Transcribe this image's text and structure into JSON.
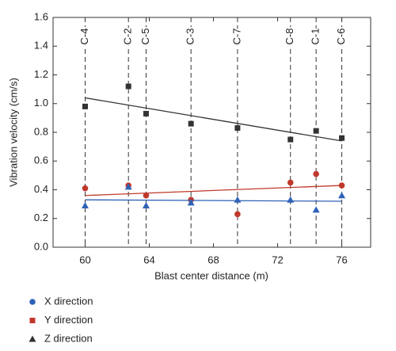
{
  "chart_data": {
    "type": "scatter",
    "x_label": "Blast center distance (m)",
    "y_label": "Vibration velocity (cm/s)",
    "stations": [
      "C-4",
      "C-2",
      "C-5",
      "C-3",
      "C-7",
      "C-8",
      "C-1",
      "C-6"
    ],
    "x": [
      60,
      62.7,
      63.8,
      66.6,
      69.5,
      72.8,
      74.4,
      76
    ],
    "xlim": [
      58,
      77.8
    ],
    "xticks": [
      60,
      64,
      68,
      72,
      76
    ],
    "ylim": [
      0,
      1.6
    ],
    "yticks": [
      {
        "value": 0,
        "label": "0.0"
      },
      0.2,
      0.4,
      0.6,
      0.8,
      {
        "value": 1,
        "label": "1.0"
      },
      1.2,
      1.4,
      1.6
    ],
    "series": [
      {
        "name": "X direction",
        "marker": "circle",
        "color": "#c0392b",
        "legend_color": "#2e62b8",
        "values": [
          0.41,
          0.43,
          0.36,
          0.33,
          0.23,
          0.45,
          0.51,
          0.43
        ],
        "fit": {
          "x": [
            60,
            76
          ],
          "values": [
            0.36,
            0.43
          ]
        }
      },
      {
        "name": "Y direction",
        "marker": "square",
        "color": "#333333",
        "legend_color": "#c0392b",
        "values": [
          0.98,
          1.12,
          0.93,
          0.86,
          0.83,
          0.75,
          0.81,
          0.76
        ],
        "fit": {
          "x": [
            60,
            76
          ],
          "values": [
            1.04,
            0.74
          ]
        }
      },
      {
        "name": "Z direction",
        "marker": "triangle",
        "color": "#2e62b8",
        "legend_color": "#333333",
        "values": [
          0.29,
          0.42,
          0.29,
          0.31,
          0.33,
          0.33,
          0.26,
          0.36
        ],
        "fit": {
          "x": [
            60,
            76
          ],
          "values": [
            0.33,
            0.32
          ]
        }
      }
    ]
  }
}
